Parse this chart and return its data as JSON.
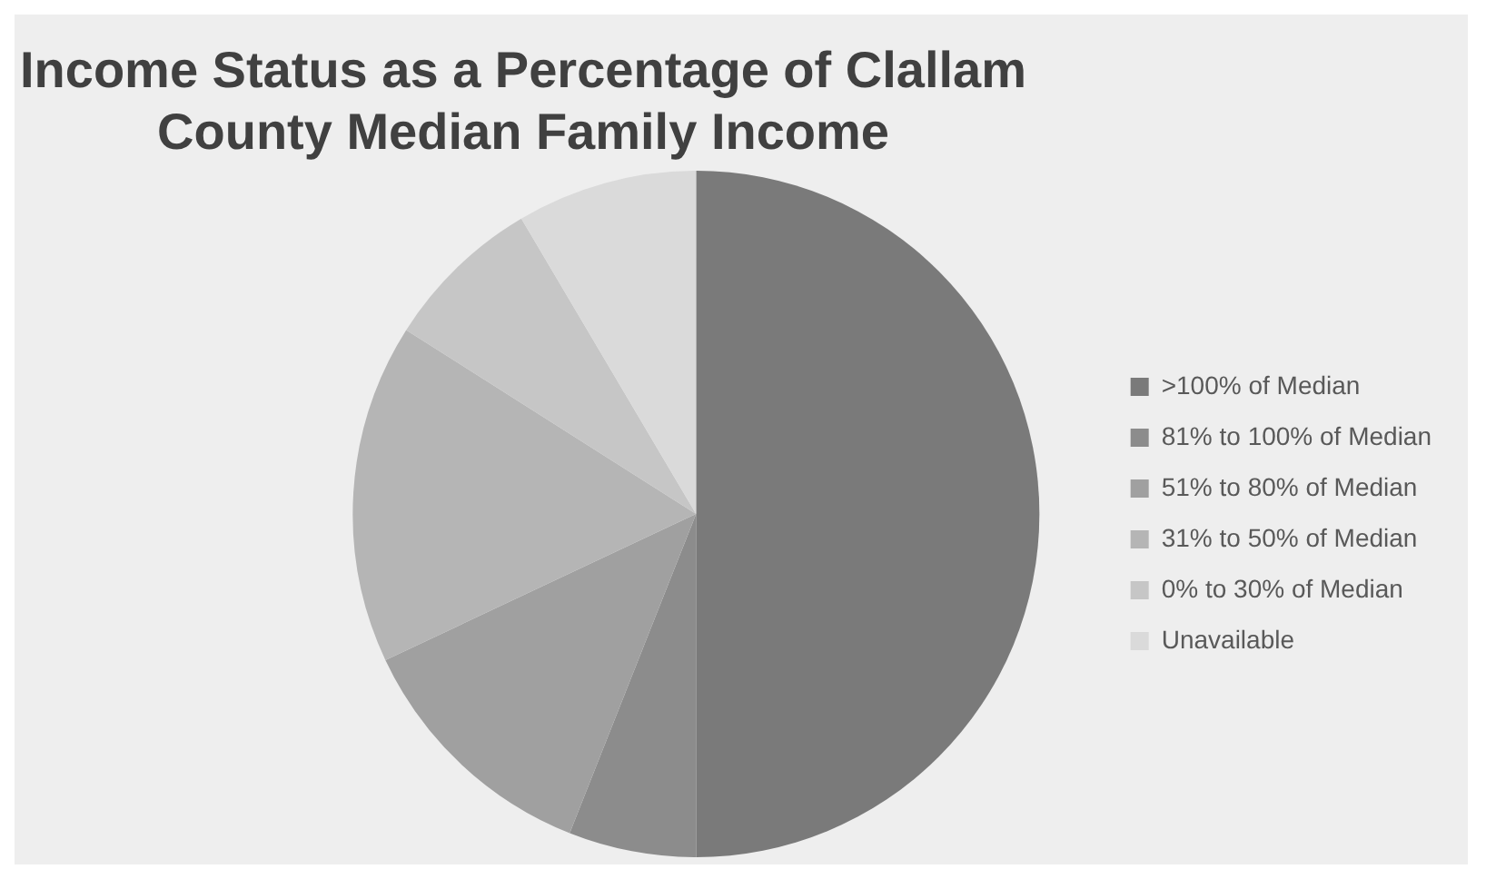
{
  "chart_data": {
    "type": "pie",
    "title": "Income Status as a Percentage of Clallam County Median Family Income",
    "categories": [
      ">100% of Median",
      "81% to 100% of Median",
      "51% to 80% of Median",
      "31% to 50% of Median",
      "0% to 30% of Median",
      "Unavailable"
    ],
    "values": [
      50,
      6,
      12,
      16,
      7.5,
      8.5
    ],
    "colors": [
      "#7a7a7a",
      "#8c8c8c",
      "#a0a0a0",
      "#b5b5b5",
      "#c6c6c6",
      "#dadada"
    ],
    "legend": "right"
  }
}
